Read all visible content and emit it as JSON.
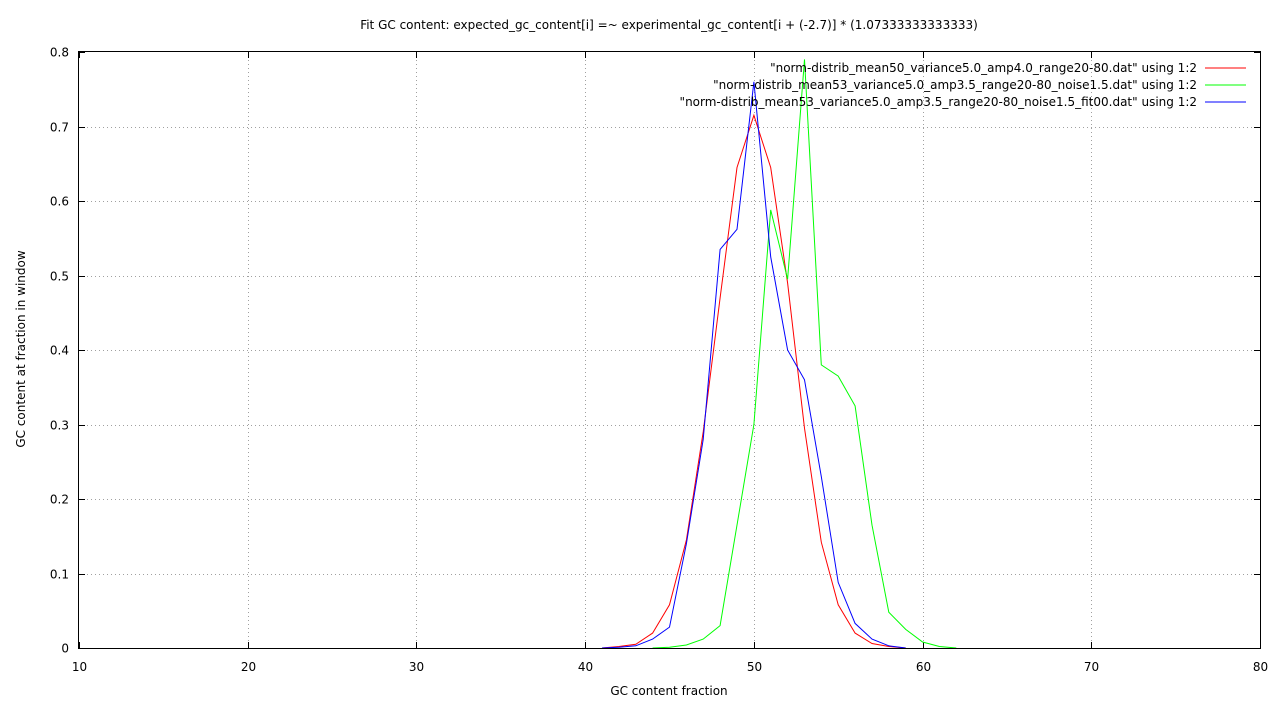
{
  "chart_data": {
    "type": "line",
    "title": "Fit GC content: expected_gc_content[i] =~ experimental_gc_content[i + (-2.7)] * (1.07333333333333)",
    "xlabel": "GC content fraction",
    "ylabel": "GC content at fraction in window",
    "xlim": [
      10,
      80
    ],
    "ylim": [
      0,
      0.8
    ],
    "x_ticks": [
      10,
      20,
      30,
      40,
      50,
      60,
      70,
      80
    ],
    "y_ticks": [
      0,
      0.1,
      0.2,
      0.3,
      0.4,
      0.5,
      0.6,
      0.7,
      0.8
    ],
    "grid": true,
    "legend_position": "top-right",
    "series": [
      {
        "name": "\"norm-distrib_mean50_variance5.0_amp4.0_range20-80.dat\" using 1:2",
        "color": "#ff0000",
        "x": [
          41,
          42,
          43,
          44,
          45,
          46,
          47,
          48,
          49,
          50,
          51,
          52,
          53,
          54,
          55,
          56,
          57,
          58,
          59
        ],
        "y": [
          0.0,
          0.002,
          0.005,
          0.02,
          0.058,
          0.145,
          0.29,
          0.47,
          0.645,
          0.715,
          0.645,
          0.49,
          0.295,
          0.142,
          0.058,
          0.02,
          0.006,
          0.002,
          0.0
        ]
      },
      {
        "name": "\"norm-distrib_mean53_variance5.0_amp3.5_range20-80_noise1.5.dat\" using 1:2",
        "color": "#00ff00",
        "x": [
          44,
          45,
          46,
          47,
          48,
          49,
          50,
          51,
          52,
          53,
          54,
          55,
          56,
          57,
          58,
          59,
          60,
          61,
          62
        ],
        "y": [
          0.0,
          0.001,
          0.004,
          0.012,
          0.03,
          0.165,
          0.3,
          0.588,
          0.495,
          0.79,
          0.38,
          0.365,
          0.325,
          0.165,
          0.048,
          0.025,
          0.008,
          0.002,
          0.0
        ]
      },
      {
        "name": "\"norm-distrib_mean53_variance5.0_amp3.5_range20-80_noise1.5_fit00.dat\" using 1:2",
        "color": "#0000ff",
        "x": [
          41,
          42,
          43,
          44,
          45,
          46,
          47,
          48,
          49,
          50,
          51,
          52,
          53,
          54,
          55,
          56,
          57,
          58,
          59
        ],
        "y": [
          0.0,
          0.001,
          0.003,
          0.012,
          0.028,
          0.14,
          0.28,
          0.535,
          0.562,
          0.76,
          0.525,
          0.4,
          0.36,
          0.23,
          0.088,
          0.033,
          0.012,
          0.003,
          0.0
        ]
      }
    ]
  }
}
